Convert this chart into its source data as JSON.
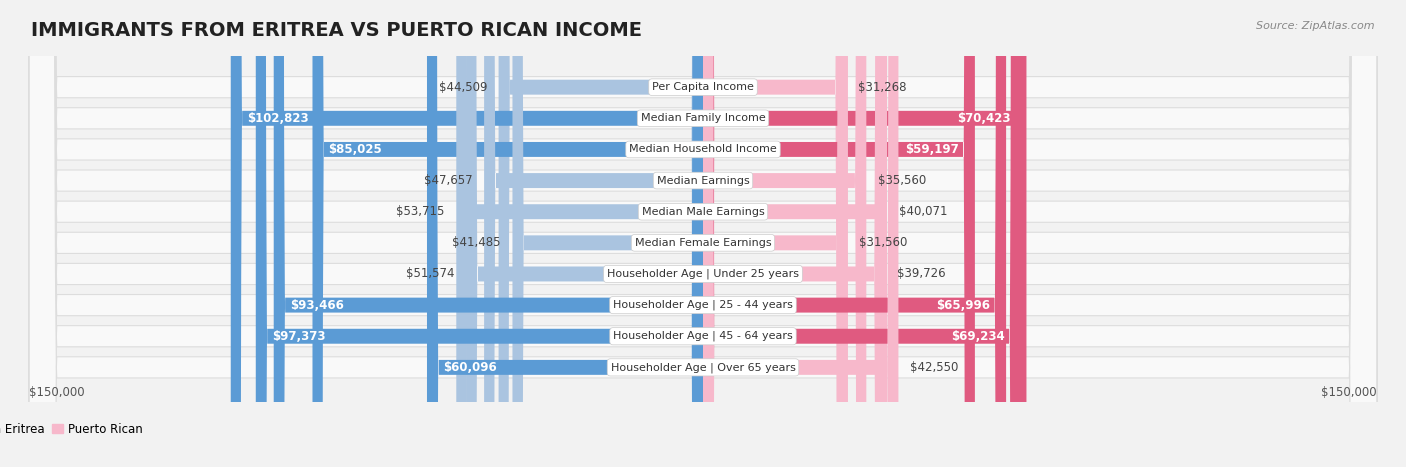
{
  "title": "IMMIGRANTS FROM ERITREA VS PUERTO RICAN INCOME",
  "source": "Source: ZipAtlas.com",
  "categories": [
    "Per Capita Income",
    "Median Family Income",
    "Median Household Income",
    "Median Earnings",
    "Median Male Earnings",
    "Median Female Earnings",
    "Householder Age | Under 25 years",
    "Householder Age | 25 - 44 years",
    "Householder Age | 45 - 64 years",
    "Householder Age | Over 65 years"
  ],
  "eritrea_values": [
    44509,
    102823,
    85025,
    47657,
    53715,
    41485,
    51574,
    93466,
    97373,
    60096
  ],
  "puerto_rican_values": [
    31268,
    70423,
    59197,
    35560,
    40071,
    31560,
    39726,
    65996,
    69234,
    42550
  ],
  "eritrea_labels": [
    "$44,509",
    "$102,823",
    "$85,025",
    "$47,657",
    "$53,715",
    "$41,485",
    "$51,574",
    "$93,466",
    "$97,373",
    "$60,096"
  ],
  "puerto_rican_labels": [
    "$31,268",
    "$70,423",
    "$59,197",
    "$35,560",
    "$40,071",
    "$31,560",
    "$39,726",
    "$65,996",
    "$69,234",
    "$42,550"
  ],
  "max_value": 150000,
  "eritrea_light_color": "#aac4e0",
  "eritrea_dark_color": "#5b9bd5",
  "puerto_rican_light_color": "#f7b8cb",
  "puerto_rican_dark_color": "#e05a80",
  "background_color": "#f2f2f2",
  "row_bg_color": "#f9f9f9",
  "row_border_color": "#dddddd",
  "legend_eritrea": "Immigrants from Eritrea",
  "legend_puerto_rican": "Puerto Rican",
  "xlabel_left": "$150,000",
  "xlabel_right": "$150,000",
  "title_fontsize": 14,
  "label_fontsize": 8.5,
  "category_fontsize": 8.0,
  "eritrea_threshold": 60000,
  "puerto_threshold": 55000
}
